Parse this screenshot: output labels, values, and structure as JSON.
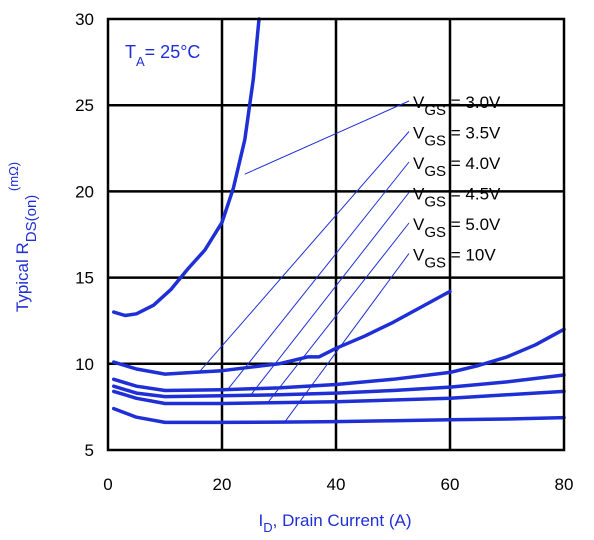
{
  "chart_data": {
    "type": "line",
    "title": "",
    "xlabel": {
      "main": "I",
      "sub": "D",
      "rest": ", Drain Current (A)"
    },
    "ylabel": {
      "pre": "Typical  R",
      "sub": "DS(on)",
      "sup": " (mΩ)"
    },
    "annotation": {
      "main": "T",
      "sub": "A",
      "rest": "= 25°C"
    },
    "xlim": [
      0,
      80
    ],
    "ylim": [
      5,
      30
    ],
    "xticks": [
      0,
      20,
      40,
      60,
      80
    ],
    "yticks": [
      5,
      10,
      15,
      20,
      25,
      30
    ],
    "grid": true,
    "line_color": "#1f2fd6",
    "legend_position": "top-right",
    "series": [
      {
        "name": {
          "main": "V",
          "sub": "GS",
          "rest": " = 3.0V"
        },
        "x": [
          1,
          3,
          5,
          8,
          11,
          14,
          17,
          20,
          22,
          24,
          25.5,
          26.5
        ],
        "y": [
          13.0,
          12.8,
          12.9,
          13.4,
          14.3,
          15.5,
          16.6,
          18.2,
          20.2,
          23.0,
          26.5,
          30.0
        ]
      },
      {
        "name": {
          "main": "V",
          "sub": "GS",
          "rest": " = 3.5V"
        },
        "x": [
          1,
          5,
          10,
          15,
          20,
          25,
          30,
          35,
          37,
          40,
          45,
          50,
          55,
          60
        ],
        "y": [
          10.1,
          9.7,
          9.4,
          9.5,
          9.6,
          9.8,
          10.0,
          10.4,
          10.4,
          10.9,
          11.6,
          12.4,
          13.3,
          14.2
        ]
      },
      {
        "name": {
          "main": "V",
          "sub": "GS",
          "rest": " = 4.0V"
        },
        "x": [
          1,
          5,
          10,
          20,
          30,
          40,
          50,
          60,
          65,
          70,
          75,
          80
        ],
        "y": [
          9.1,
          8.7,
          8.45,
          8.5,
          8.6,
          8.8,
          9.1,
          9.5,
          9.9,
          10.4,
          11.1,
          12.0
        ]
      },
      {
        "name": {
          "main": "V",
          "sub": "GS",
          "rest": " = 4.5V"
        },
        "x": [
          1,
          5,
          10,
          20,
          30,
          40,
          50,
          60,
          70,
          80
        ],
        "y": [
          8.7,
          8.3,
          8.1,
          8.15,
          8.2,
          8.3,
          8.45,
          8.65,
          8.95,
          9.35
        ]
      },
      {
        "name": {
          "main": "V",
          "sub": "GS",
          "rest": " = 5.0V"
        },
        "x": [
          1,
          5,
          10,
          20,
          30,
          40,
          50,
          60,
          70,
          80
        ],
        "y": [
          8.4,
          8.0,
          7.7,
          7.7,
          7.75,
          7.8,
          7.9,
          8.0,
          8.2,
          8.4
        ]
      },
      {
        "name": {
          "main": "V",
          "sub": "GS",
          "rest": " = 10V"
        },
        "x": [
          1,
          5,
          10,
          20,
          30,
          40,
          50,
          60,
          70,
          80
        ],
        "y": [
          7.4,
          6.9,
          6.6,
          6.6,
          6.62,
          6.65,
          6.7,
          6.75,
          6.8,
          6.88
        ]
      }
    ]
  }
}
